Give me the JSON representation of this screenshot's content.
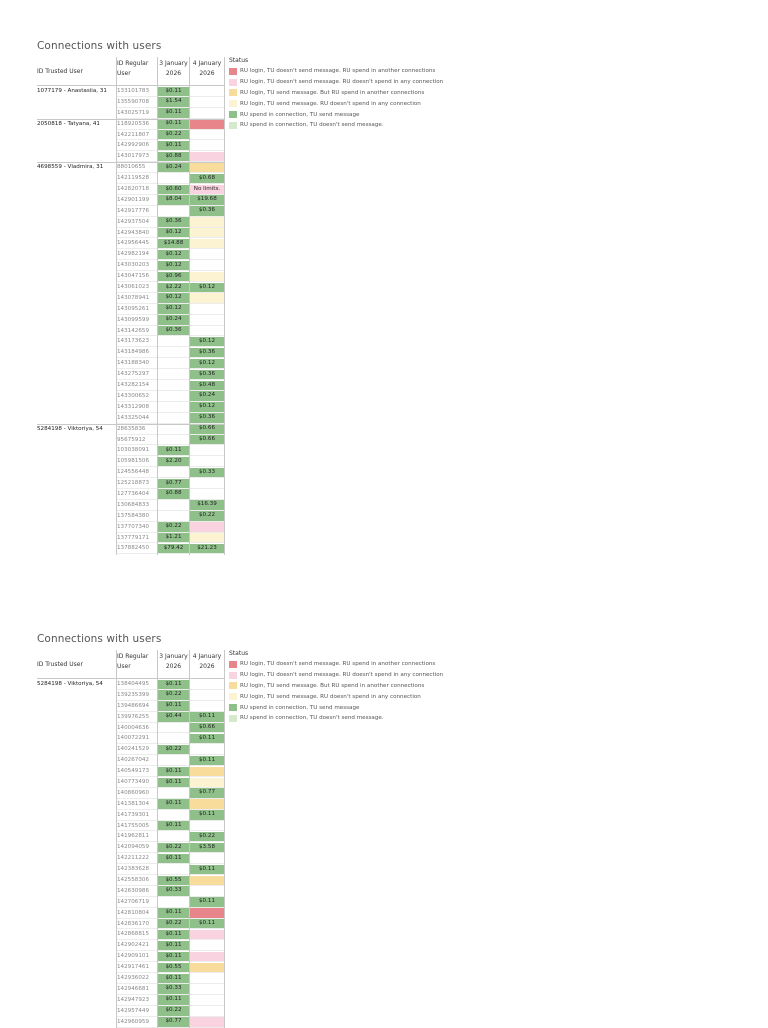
{
  "panels": [
    {
      "title": "Connections with users",
      "headers": {
        "tu": "ID Trusted User",
        "ru": "ID Regular User",
        "d1": "3 January 2026",
        "d2": "4 January 2026"
      },
      "legend_title": "Status",
      "rows": [
        {
          "tu": "1077179 - Anastasiia, 31",
          "ru": "133101783",
          "v1": "$0.11",
          "s1": "g",
          "v2": "",
          "s2": ""
        },
        {
          "tu": "",
          "ru": "135590708",
          "v1": "$1.54",
          "s1": "g",
          "v2": "",
          "s2": ""
        },
        {
          "tu": "",
          "ru": "143025719",
          "v1": "$0.11",
          "s1": "g",
          "v2": "",
          "s2": ""
        },
        {
          "tu": "2050818 - Tatyana, 41",
          "ru": "118920536",
          "v1": "$0.11",
          "s1": "g",
          "v2": "",
          "s2": "r"
        },
        {
          "tu": "",
          "ru": "142211807",
          "v1": "$0.22",
          "s1": "g",
          "v2": "",
          "s2": ""
        },
        {
          "tu": "",
          "ru": "142992906",
          "v1": "$0.11",
          "s1": "g",
          "v2": "",
          "s2": ""
        },
        {
          "tu": "",
          "ru": "143017973",
          "v1": "$0.88",
          "s1": "g",
          "v2": "",
          "s2": "p"
        },
        {
          "tu": "4698559 - Vladmira, 31",
          "ru": "88010655",
          "v1": "$0.24",
          "s1": "g",
          "v2": "",
          "s2": "o"
        },
        {
          "tu": "",
          "ru": "142119528",
          "v1": "",
          "s1": "",
          "v2": "$0.68",
          "s2": "g"
        },
        {
          "tu": "",
          "ru": "142820718",
          "v1": "$0.60",
          "s1": "g",
          "v2": "No limits.",
          "s2": "p"
        },
        {
          "tu": "",
          "ru": "142901199",
          "v1": "$8.04",
          "s1": "g",
          "v2": "$19.68",
          "s2": "g"
        },
        {
          "tu": "",
          "ru": "142917776",
          "v1": "",
          "s1": "",
          "v2": "$0.36",
          "s2": "g"
        },
        {
          "tu": "",
          "ru": "142937504",
          "v1": "$0.36",
          "s1": "g",
          "v2": "",
          "s2": "y"
        },
        {
          "tu": "",
          "ru": "142943840",
          "v1": "$0.12",
          "s1": "g",
          "v2": "",
          "s2": "y"
        },
        {
          "tu": "",
          "ru": "142956445",
          "v1": "$14.88",
          "s1": "g",
          "v2": "",
          "s2": "y"
        },
        {
          "tu": "",
          "ru": "142982194",
          "v1": "$0.12",
          "s1": "g",
          "v2": "",
          "s2": ""
        },
        {
          "tu": "",
          "ru": "143030203",
          "v1": "$0.12",
          "s1": "g",
          "v2": "",
          "s2": ""
        },
        {
          "tu": "",
          "ru": "143047156",
          "v1": "$0.96",
          "s1": "g",
          "v2": "",
          "s2": "y"
        },
        {
          "tu": "",
          "ru": "143061023",
          "v1": "$2.22",
          "s1": "g",
          "v2": "$0.12",
          "s2": "g"
        },
        {
          "tu": "",
          "ru": "143078941",
          "v1": "$0.12",
          "s1": "g",
          "v2": "",
          "s2": "y"
        },
        {
          "tu": "",
          "ru": "143095261",
          "v1": "$0.12",
          "s1": "g",
          "v2": "",
          "s2": ""
        },
        {
          "tu": "",
          "ru": "143099599",
          "v1": "$0.24",
          "s1": "g",
          "v2": "",
          "s2": ""
        },
        {
          "tu": "",
          "ru": "143142659",
          "v1": "$0.36",
          "s1": "g",
          "v2": "",
          "s2": ""
        },
        {
          "tu": "",
          "ru": "143173623",
          "v1": "",
          "s1": "",
          "v2": "$0.12",
          "s2": "g"
        },
        {
          "tu": "",
          "ru": "143184986",
          "v1": "",
          "s1": "",
          "v2": "$0.36",
          "s2": "g"
        },
        {
          "tu": "",
          "ru": "143188340",
          "v1": "",
          "s1": "",
          "v2": "$0.12",
          "s2": "g"
        },
        {
          "tu": "",
          "ru": "143275297",
          "v1": "",
          "s1": "",
          "v2": "$0.36",
          "s2": "g"
        },
        {
          "tu": "",
          "ru": "143282154",
          "v1": "",
          "s1": "",
          "v2": "$0.48",
          "s2": "g"
        },
        {
          "tu": "",
          "ru": "143300652",
          "v1": "",
          "s1": "",
          "v2": "$0.24",
          "s2": "g"
        },
        {
          "tu": "",
          "ru": "143312908",
          "v1": "",
          "s1": "",
          "v2": "$0.12",
          "s2": "g"
        },
        {
          "tu": "",
          "ru": "143325044",
          "v1": "",
          "s1": "",
          "v2": "$0.36",
          "s2": "g"
        },
        {
          "tu": "5284198 - Viktoriya, 54",
          "ru": "28635836",
          "v1": "",
          "s1": "",
          "v2": "$0.66",
          "s2": "g"
        },
        {
          "tu": "",
          "ru": "95675912",
          "v1": "",
          "s1": "",
          "v2": "$0.66",
          "s2": "g"
        },
        {
          "tu": "",
          "ru": "103038091",
          "v1": "$0.11",
          "s1": "g",
          "v2": "",
          "s2": ""
        },
        {
          "tu": "",
          "ru": "105981506",
          "v1": "$2.20",
          "s1": "g",
          "v2": "",
          "s2": ""
        },
        {
          "tu": "",
          "ru": "124556448",
          "v1": "",
          "s1": "",
          "v2": "$0.33",
          "s2": "g"
        },
        {
          "tu": "",
          "ru": "125218873",
          "v1": "$0.77",
          "s1": "g",
          "v2": "",
          "s2": ""
        },
        {
          "tu": "",
          "ru": "127736404",
          "v1": "$0.88",
          "s1": "g",
          "v2": "",
          "s2": ""
        },
        {
          "tu": "",
          "ru": "130684833",
          "v1": "",
          "s1": "",
          "v2": "$16.39",
          "s2": "g"
        },
        {
          "tu": "",
          "ru": "137584380",
          "v1": "",
          "s1": "",
          "v2": "$0.22",
          "s2": "g"
        },
        {
          "tu": "",
          "ru": "137707340",
          "v1": "$0.22",
          "s1": "g",
          "v2": "",
          "s2": "p"
        },
        {
          "tu": "",
          "ru": "137779171",
          "v1": "$1.21",
          "s1": "g",
          "v2": "",
          "s2": "y"
        },
        {
          "tu": "",
          "ru": "137882450",
          "v1": "$79.42",
          "s1": "g",
          "v2": "$21.23",
          "s2": "g"
        }
      ]
    },
    {
      "title": "Connections with users",
      "headers": {
        "tu": "ID Trusted User",
        "ru": "ID Regular User",
        "d1": "3 January 2026",
        "d2": "4 January 2026"
      },
      "legend_title": "Status",
      "rows": [
        {
          "tu": "5284198 - Viktoriya, 54",
          "ru": "138404495",
          "v1": "$0.11",
          "s1": "g",
          "v2": "",
          "s2": ""
        },
        {
          "tu": "",
          "ru": "139235399",
          "v1": "$0.22",
          "s1": "g",
          "v2": "",
          "s2": ""
        },
        {
          "tu": "",
          "ru": "139486694",
          "v1": "$0.11",
          "s1": "g",
          "v2": "",
          "s2": ""
        },
        {
          "tu": "",
          "ru": "139976255",
          "v1": "$0.44",
          "s1": "g",
          "v2": "$0.11",
          "s2": "g"
        },
        {
          "tu": "",
          "ru": "140004636",
          "v1": "",
          "s1": "",
          "v2": "$0.66",
          "s2": "g"
        },
        {
          "tu": "",
          "ru": "140072291",
          "v1": "",
          "s1": "",
          "v2": "$0.11",
          "s2": "g"
        },
        {
          "tu": "",
          "ru": "140241529",
          "v1": "$0.22",
          "s1": "g",
          "v2": "",
          "s2": ""
        },
        {
          "tu": "",
          "ru": "140267042",
          "v1": "",
          "s1": "",
          "v2": "$0.11",
          "s2": "g"
        },
        {
          "tu": "",
          "ru": "140549173",
          "v1": "$0.11",
          "s1": "g",
          "v2": "",
          "s2": "o"
        },
        {
          "tu": "",
          "ru": "140773490",
          "v1": "$0.11",
          "s1": "g",
          "v2": "",
          "s2": "y"
        },
        {
          "tu": "",
          "ru": "140860960",
          "v1": "",
          "s1": "",
          "v2": "$0.77",
          "s2": "g"
        },
        {
          "tu": "",
          "ru": "141381304",
          "v1": "$0.11",
          "s1": "g",
          "v2": "",
          "s2": "o"
        },
        {
          "tu": "",
          "ru": "141739301",
          "v1": "",
          "s1": "",
          "v2": "$0.11",
          "s2": "g"
        },
        {
          "tu": "",
          "ru": "141755005",
          "v1": "$0.11",
          "s1": "g",
          "v2": "",
          "s2": ""
        },
        {
          "tu": "",
          "ru": "141962811",
          "v1": "",
          "s1": "",
          "v2": "$0.22",
          "s2": "g"
        },
        {
          "tu": "",
          "ru": "142094059",
          "v1": "$0.22",
          "s1": "g",
          "v2": "$3.58",
          "s2": "g"
        },
        {
          "tu": "",
          "ru": "142211222",
          "v1": "$0.11",
          "s1": "g",
          "v2": "",
          "s2": ""
        },
        {
          "tu": "",
          "ru": "142383628",
          "v1": "",
          "s1": "",
          "v2": "$0.11",
          "s2": "g"
        },
        {
          "tu": "",
          "ru": "142558306",
          "v1": "$0.55",
          "s1": "g",
          "v2": "",
          "s2": "o"
        },
        {
          "tu": "",
          "ru": "142630986",
          "v1": "$0.33",
          "s1": "g",
          "v2": "",
          "s2": ""
        },
        {
          "tu": "",
          "ru": "142706719",
          "v1": "",
          "s1": "",
          "v2": "$0.11",
          "s2": "g"
        },
        {
          "tu": "",
          "ru": "142810804",
          "v1": "$0.11",
          "s1": "g",
          "v2": "",
          "s2": "r"
        },
        {
          "tu": "",
          "ru": "142836170",
          "v1": "$0.22",
          "s1": "g",
          "v2": "$0.11",
          "s2": "g"
        },
        {
          "tu": "",
          "ru": "142868815",
          "v1": "$0.11",
          "s1": "g",
          "v2": "",
          "s2": "p"
        },
        {
          "tu": "",
          "ru": "142902421",
          "v1": "$0.11",
          "s1": "g",
          "v2": "",
          "s2": ""
        },
        {
          "tu": "",
          "ru": "142909101",
          "v1": "$0.11",
          "s1": "g",
          "v2": "",
          "s2": "p"
        },
        {
          "tu": "",
          "ru": "142917461",
          "v1": "$0.55",
          "s1": "g",
          "v2": "",
          "s2": "o"
        },
        {
          "tu": "",
          "ru": "142936022",
          "v1": "$0.11",
          "s1": "g",
          "v2": "",
          "s2": ""
        },
        {
          "tu": "",
          "ru": "142946681",
          "v1": "$0.33",
          "s1": "g",
          "v2": "",
          "s2": ""
        },
        {
          "tu": "",
          "ru": "142947923",
          "v1": "$0.11",
          "s1": "g",
          "v2": "",
          "s2": ""
        },
        {
          "tu": "",
          "ru": "142957449",
          "v1": "$0.22",
          "s1": "g",
          "v2": "",
          "s2": ""
        },
        {
          "tu": "",
          "ru": "142960959",
          "v1": "$0.77",
          "s1": "g",
          "v2": "",
          "s2": "p"
        }
      ]
    }
  ],
  "legend": [
    {
      "key": "r",
      "label": "RU login, TU doesn't send message. RU spend in another connections",
      "color": "#e8858b"
    },
    {
      "key": "p",
      "label": "RU login, TU doesn't send message. RU doesn't spend in any connection",
      "color": "#f9d3df"
    },
    {
      "key": "o",
      "label": "RU login, TU send message. But RU spend in another connections",
      "color": "#f7dc9b"
    },
    {
      "key": "y",
      "label": "RU login, TU send message. RU doesn't spend in any connection",
      "color": "#fbf3d2"
    },
    {
      "key": "g",
      "label": "RU spend in connection, TU send message",
      "color": "#8fc08a"
    },
    {
      "key": "lg",
      "label": "RU spend in connection, TU doesn't send message.",
      "color": "#d5eacd"
    }
  ]
}
